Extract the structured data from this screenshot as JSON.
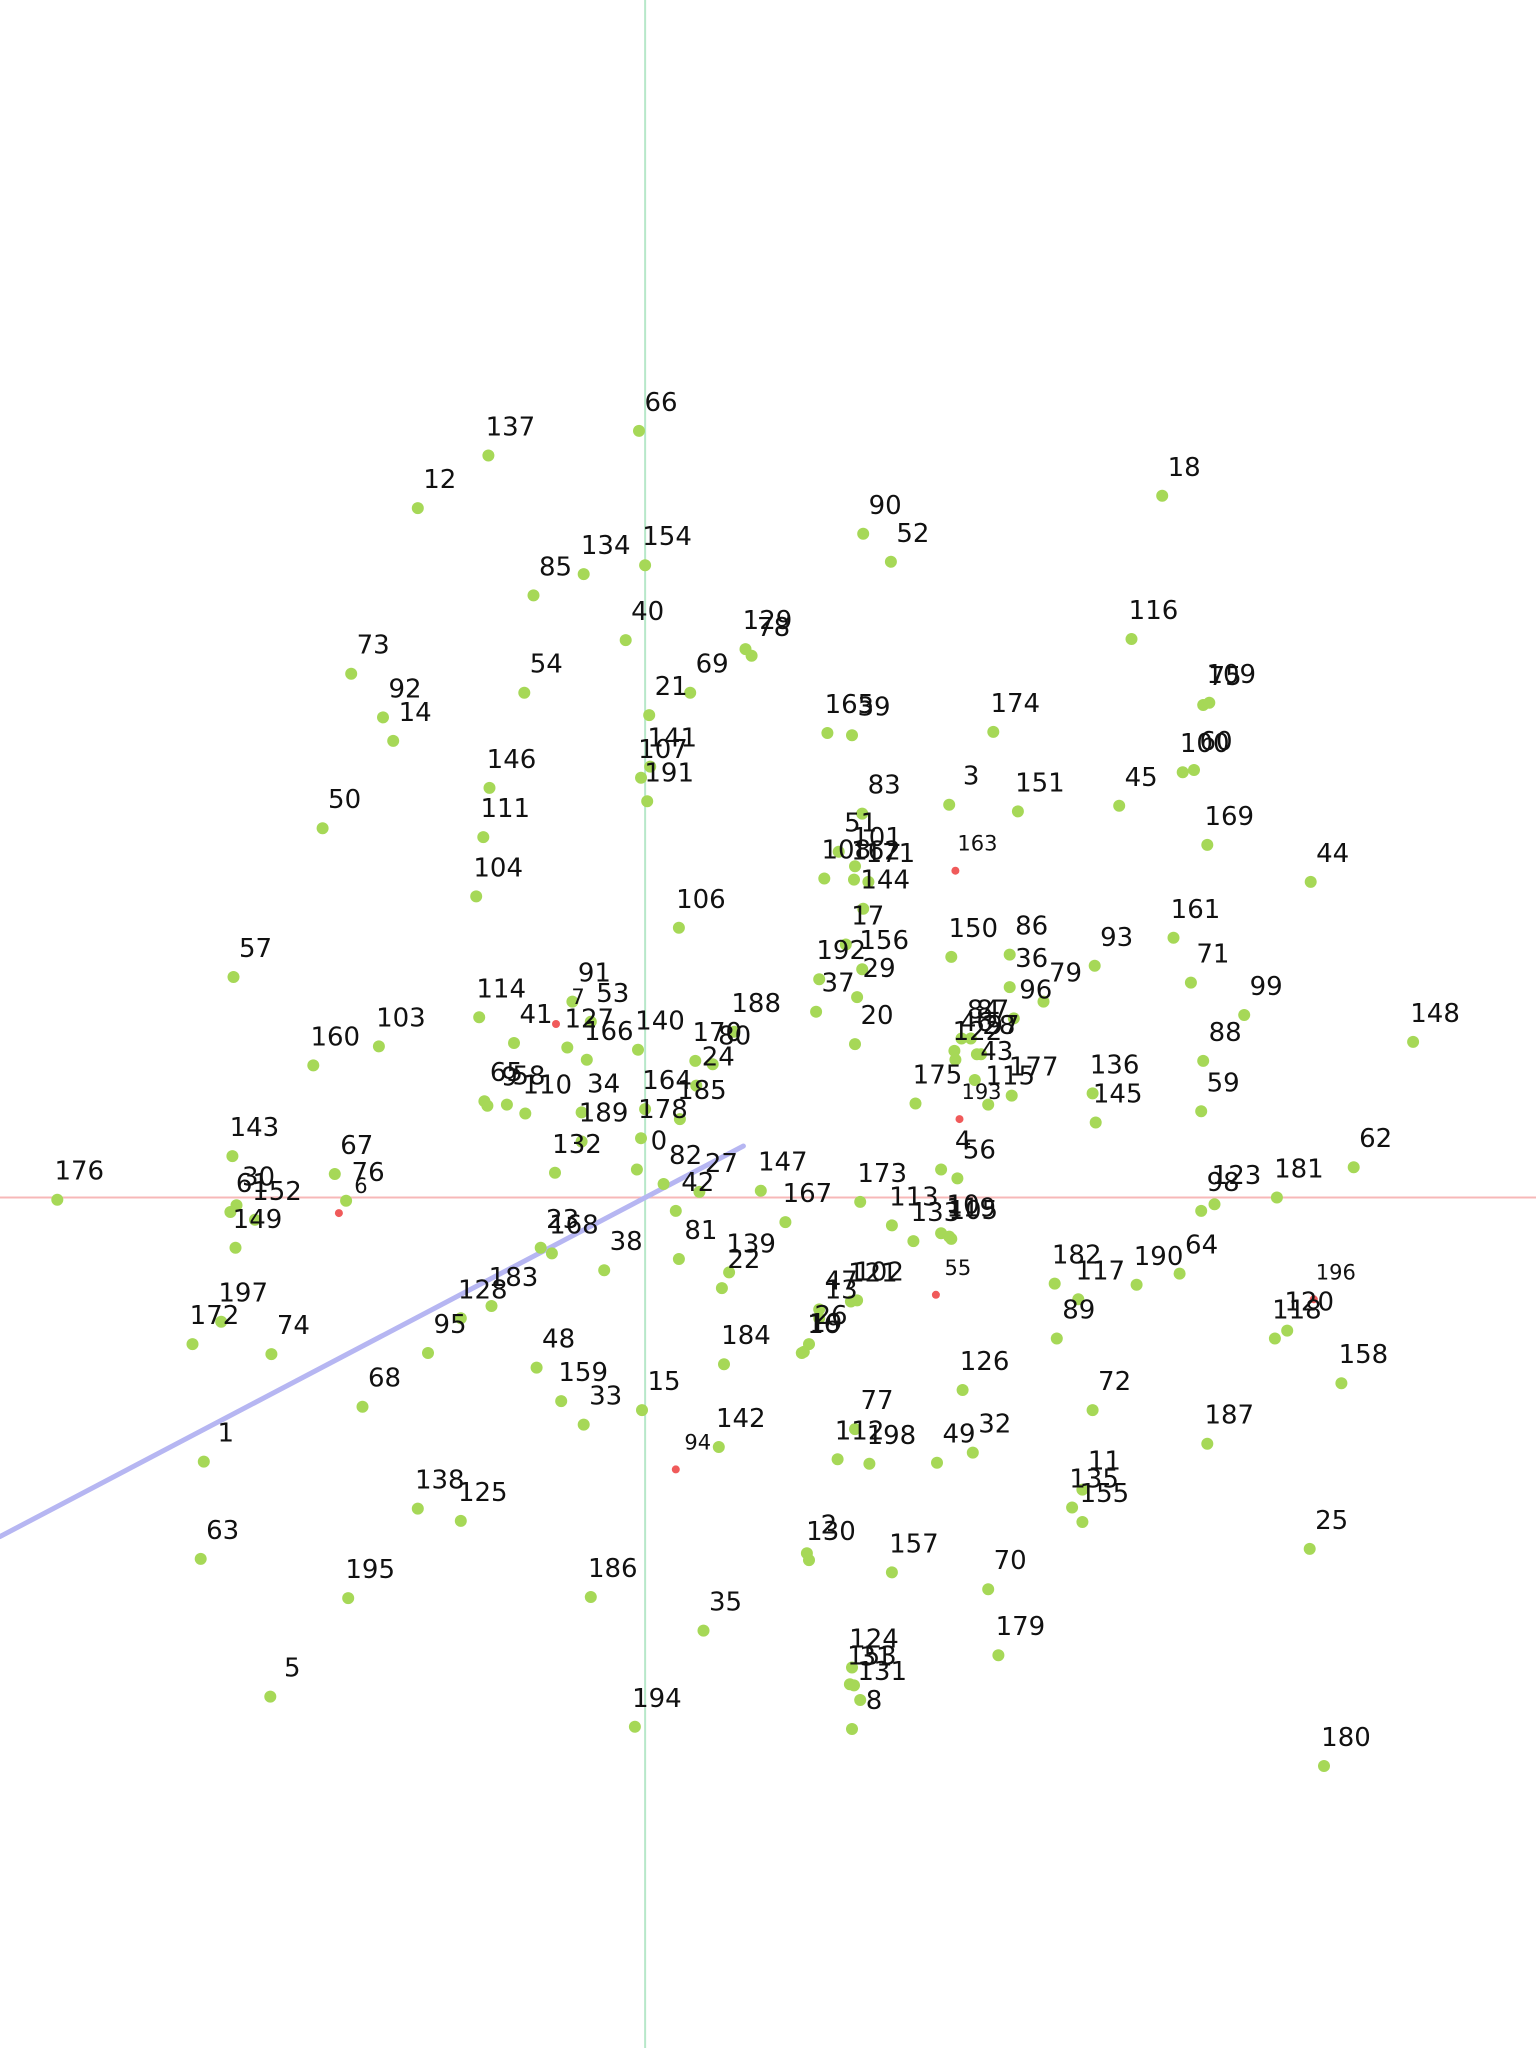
{
  "chart_data": {
    "type": "scatter",
    "title": "",
    "xlabel": "",
    "ylabel": "",
    "xlim": [
      -630,
      870
    ],
    "ylim": [
      -760,
      1070
    ],
    "grid": false,
    "axes": {
      "show_ticks": false,
      "origin_lines": true
    },
    "colors": {
      "point": "#a6d857",
      "highlight": "#f05a5a",
      "label": "#111111",
      "x_axis": "#f7b8b8",
      "y_axis": "#b7e8c9",
      "vector": "#b6b6f2"
    },
    "vector": {
      "from": [
        -630,
        -303
      ],
      "to": [
        96,
        46
      ]
    },
    "points": [
      {
        "id": "0",
        "x": -8,
        "y": 25
      },
      {
        "id": "1",
        "x": -431,
        "y": -236
      },
      {
        "id": "2",
        "x": 158,
        "y": -318
      },
      {
        "id": "3",
        "x": 297,
        "y": 351
      },
      {
        "id": "4",
        "x": 289,
        "y": 25
      },
      {
        "id": "5",
        "x": -366,
        "y": -446
      },
      {
        "id": "6",
        "x": -299,
        "y": -14,
        "highlight": true
      },
      {
        "id": "7",
        "x": -87,
        "y": 155,
        "highlight": true
      },
      {
        "id": "8",
        "x": 202,
        "y": -475
      },
      {
        "id": "9",
        "x": -154,
        "y": 82
      },
      {
        "id": "10",
        "x": 289,
        "y": -32
      },
      {
        "id": "11",
        "x": 427,
        "y": -261
      },
      {
        "id": "12",
        "x": -222,
        "y": 616
      },
      {
        "id": "13",
        "x": 170,
        "y": -108
      },
      {
        "id": "14",
        "x": -246,
        "y": 408
      },
      {
        "id": "15",
        "x": -3,
        "y": -190
      },
      {
        "id": "16",
        "x": 153,
        "y": -139
      },
      {
        "id": "17",
        "x": 196,
        "y": 226
      },
      {
        "id": "18",
        "x": 505,
        "y": 627
      },
      {
        "id": "19",
        "x": 155,
        "y": -138
      },
      {
        "id": "20",
        "x": 205,
        "y": 137
      },
      {
        "id": "21",
        "x": 4,
        "y": 431
      },
      {
        "id": "22",
        "x": 75,
        "y": -81
      },
      {
        "id": "23",
        "x": -102,
        "y": -45
      },
      {
        "id": "24",
        "x": 50,
        "y": 100
      },
      {
        "id": "25",
        "x": 649,
        "y": -314
      },
      {
        "id": "26",
        "x": 160,
        "y": -131
      },
      {
        "id": "27",
        "x": 53,
        "y": 5
      },
      {
        "id": "28",
        "x": 324,
        "y": 128
      },
      {
        "id": "29",
        "x": 207,
        "y": 179
      },
      {
        "id": "30",
        "x": -399,
        "y": -7
      },
      {
        "id": "31",
        "x": 204,
        "y": -436
      },
      {
        "id": "32",
        "x": 320,
        "y": -228
      },
      {
        "id": "33",
        "x": -60,
        "y": -203
      },
      {
        "id": "34",
        "x": -62,
        "y": 76
      },
      {
        "id": "35",
        "x": 57,
        "y": -387
      },
      {
        "id": "36",
        "x": 356,
        "y": 188
      },
      {
        "id": "37",
        "x": 167,
        "y": 166
      },
      {
        "id": "38",
        "x": -40,
        "y": -65
      },
      {
        "id": "39",
        "x": 202,
        "y": 413
      },
      {
        "id": "40",
        "x": -19,
        "y": 498
      },
      {
        "id": "41",
        "x": -128,
        "y": 138
      },
      {
        "id": "42",
        "x": 30,
        "y": -12
      },
      {
        "id": "43",
        "x": 322,
        "y": 105
      },
      {
        "id": "44",
        "x": 650,
        "y": 282
      },
      {
        "id": "45",
        "x": 463,
        "y": 350
      },
      {
        "id": "46",
        "x": 302,
        "y": 131
      },
      {
        "id": "47",
        "x": 170,
        "y": -100
      },
      {
        "id": "48",
        "x": -106,
        "y": -152
      },
      {
        "id": "49",
        "x": 285,
        "y": -237
      },
      {
        "id": "50",
        "x": -315,
        "y": 330
      },
      {
        "id": "51",
        "x": 189,
        "y": 309
      },
      {
        "id": "52",
        "x": 240,
        "y": 568
      },
      {
        "id": "53",
        "x": -53,
        "y": 157
      },
      {
        "id": "54",
        "x": -118,
        "y": 451
      },
      {
        "id": "55",
        "x": 284,
        "y": -87,
        "highlight": true
      },
      {
        "id": "56",
        "x": 305,
        "y": 17
      },
      {
        "id": "57",
        "x": -402,
        "y": 197
      },
      {
        "id": "58",
        "x": -135,
        "y": 83
      },
      {
        "id": "59",
        "x": 543,
        "y": 77
      },
      {
        "id": "60",
        "x": 536,
        "y": 382
      },
      {
        "id": "61",
        "x": -405,
        "y": -13
      },
      {
        "id": "62",
        "x": 692,
        "y": 27
      },
      {
        "id": "63",
        "x": -434,
        "y": -323
      },
      {
        "id": "64",
        "x": 522,
        "y": -68
      },
      {
        "id": "65",
        "x": -157,
        "y": 86
      },
      {
        "id": "66",
        "x": -6,
        "y": 685
      },
      {
        "id": "67",
        "x": -303,
        "y": 21
      },
      {
        "id": "68",
        "x": -276,
        "y": -187
      },
      {
        "id": "69",
        "x": 44,
        "y": 451
      },
      {
        "id": "70",
        "x": 335,
        "y": -350
      },
      {
        "id": "71",
        "x": 533,
        "y": 192
      },
      {
        "id": "72",
        "x": 437,
        "y": -190
      },
      {
        "id": "73",
        "x": -287,
        "y": 468
      },
      {
        "id": "74",
        "x": -365,
        "y": -140
      },
      {
        "id": "75",
        "x": 545,
        "y": 440
      },
      {
        "id": "76",
        "x": -292,
        "y": -3
      },
      {
        "id": "77",
        "x": 205,
        "y": -207
      },
      {
        "id": "78",
        "x": 104,
        "y": 484
      },
      {
        "id": "79",
        "x": 389,
        "y": 175
      },
      {
        "id": "80",
        "x": 66,
        "y": 119
      },
      {
        "id": "81",
        "x": 33,
        "y": -55
      },
      {
        "id": "82",
        "x": 18,
        "y": 12
      },
      {
        "id": "83",
        "x": 212,
        "y": 343
      },
      {
        "id": "84",
        "x": 309,
        "y": 142
      },
      {
        "id": "85",
        "x": -109,
        "y": 538
      },
      {
        "id": "86",
        "x": 356,
        "y": 217
      },
      {
        "id": "87",
        "x": 318,
        "y": 142
      },
      {
        "id": "88",
        "x": 545,
        "y": 122
      },
      {
        "id": "89",
        "x": 402,
        "y": -126
      },
      {
        "id": "90",
        "x": 213,
        "y": 593
      },
      {
        "id": "91",
        "x": -71,
        "y": 175
      },
      {
        "id": "92",
        "x": -256,
        "y": 429
      },
      {
        "id": "93",
        "x": 439,
        "y": 207
      },
      {
        "id": "94",
        "x": 30,
        "y": -243,
        "highlight": true
      },
      {
        "id": "95",
        "x": -212,
        "y": -139
      },
      {
        "id": "96",
        "x": 360,
        "y": 160
      },
      {
        "id": "97",
        "x": 328,
        "y": 128
      },
      {
        "id": "98",
        "x": 543,
        "y": -12
      },
      {
        "id": "99",
        "x": 585,
        "y": 163
      },
      {
        "id": "100",
        "x": 525,
        "y": 380
      },
      {
        "id": "101",
        "x": 205,
        "y": 296
      },
      {
        "id": "102",
        "x": 207,
        "y": -92
      },
      {
        "id": "103",
        "x": -260,
        "y": 135
      },
      {
        "id": "104",
        "x": -165,
        "y": 269
      },
      {
        "id": "105",
        "x": 299,
        "y": -37
      },
      {
        "id": "106",
        "x": 33,
        "y": 241
      },
      {
        "id": "107",
        "x": -4,
        "y": 375
      },
      {
        "id": "108",
        "x": 175,
        "y": 285
      },
      {
        "id": "109",
        "x": 551,
        "y": 442
      },
      {
        "id": "110",
        "x": -117,
        "y": 75
      },
      {
        "id": "111",
        "x": -158,
        "y": 322
      },
      {
        "id": "112",
        "x": 188,
        "y": -234
      },
      {
        "id": "113",
        "x": 241,
        "y": -25
      },
      {
        "id": "114",
        "x": -162,
        "y": 161
      },
      {
        "id": "115",
        "x": 335,
        "y": 83
      },
      {
        "id": "116",
        "x": 475,
        "y": 499
      },
      {
        "id": "117",
        "x": 423,
        "y": -91
      },
      {
        "id": "118",
        "x": 615,
        "y": -126
      },
      {
        "id": "119",
        "x": 297,
        "y": -35
      },
      {
        "id": "120",
        "x": 627,
        "y": -119
      },
      {
        "id": "121",
        "x": 201,
        "y": -93
      },
      {
        "id": "122",
        "x": 303,
        "y": 123
      },
      {
        "id": "123",
        "x": 556,
        "y": -6
      },
      {
        "id": "124",
        "x": 202,
        "y": -420
      },
      {
        "id": "125",
        "x": -180,
        "y": -289
      },
      {
        "id": "126",
        "x": 310,
        "y": -172
      },
      {
        "id": "127",
        "x": -76,
        "y": 134
      },
      {
        "id": "128",
        "x": -180,
        "y": -108
      },
      {
        "id": "129",
        "x": 98,
        "y": 490
      },
      {
        "id": "130",
        "x": 160,
        "y": -324
      },
      {
        "id": "131",
        "x": 210,
        "y": -449
      },
      {
        "id": "132",
        "x": -88,
        "y": 22
      },
      {
        "id": "133",
        "x": 262,
        "y": -39
      },
      {
        "id": "134",
        "x": -60,
        "y": 557
      },
      {
        "id": "135",
        "x": 417,
        "y": -277
      },
      {
        "id": "136",
        "x": 437,
        "y": 93
      },
      {
        "id": "137",
        "x": -153,
        "y": 663
      },
      {
        "id": "138",
        "x": -222,
        "y": -278
      },
      {
        "id": "139",
        "x": 82,
        "y": -67
      },
      {
        "id": "140",
        "x": -7,
        "y": 132
      },
      {
        "id": "141",
        "x": 5,
        "y": 385
      },
      {
        "id": "142",
        "x": 72,
        "y": -223
      },
      {
        "id": "143",
        "x": -403,
        "y": 37
      },
      {
        "id": "144",
        "x": 213,
        "y": 258
      },
      {
        "id": "145",
        "x": 440,
        "y": 67
      },
      {
        "id": "146",
        "x": -152,
        "y": 366
      },
      {
        "id": "147",
        "x": 113,
        "y": 6
      },
      {
        "id": "148",
        "x": 750,
        "y": 139
      },
      {
        "id": "149",
        "x": -400,
        "y": -45
      },
      {
        "id": "150",
        "x": 299,
        "y": 215
      },
      {
        "id": "151",
        "x": 364,
        "y": 345
      },
      {
        "id": "152",
        "x": -381,
        "y": -20
      },
      {
        "id": "153",
        "x": 200,
        "y": -435
      },
      {
        "id": "154",
        "x": 0,
        "y": 565
      },
      {
        "id": "155",
        "x": 427,
        "y": -290
      },
      {
        "id": "156",
        "x": 212,
        "y": 204
      },
      {
        "id": "157",
        "x": 241,
        "y": -335
      },
      {
        "id": "158",
        "x": 680,
        "y": -166
      },
      {
        "id": "159",
        "x": -82,
        "y": -182
      },
      {
        "id": "160",
        "x": -324,
        "y": 118
      },
      {
        "id": "161",
        "x": 516,
        "y": 232
      },
      {
        "id": "162",
        "x": 204,
        "y": 284
      },
      {
        "id": "163",
        "x": 303,
        "y": 292,
        "highlight": true
      },
      {
        "id": "164",
        "x": 0,
        "y": 79
      },
      {
        "id": "165",
        "x": 178,
        "y": 415
      },
      {
        "id": "166",
        "x": -57,
        "y": 123
      },
      {
        "id": "167",
        "x": 137,
        "y": -22
      },
      {
        "id": "168",
        "x": -91,
        "y": -50
      },
      {
        "id": "169",
        "x": 549,
        "y": 315
      },
      {
        "id": "170",
        "x": 49,
        "y": 122
      },
      {
        "id": "171",
        "x": 218,
        "y": 282
      },
      {
        "id": "172",
        "x": -442,
        "y": -131
      },
      {
        "id": "173",
        "x": 210,
        "y": -4
      },
      {
        "id": "174",
        "x": 340,
        "y": 416
      },
      {
        "id": "175",
        "x": 264,
        "y": 84
      },
      {
        "id": "176",
        "x": -574,
        "y": -2
      },
      {
        "id": "177",
        "x": 358,
        "y": 91
      },
      {
        "id": "178",
        "x": -4,
        "y": 53
      },
      {
        "id": "179",
        "x": 345,
        "y": -409
      },
      {
        "id": "180",
        "x": 663,
        "y": -508
      },
      {
        "id": "181",
        "x": 617,
        "y": 0
      },
      {
        "id": "182",
        "x": 400,
        "y": -77
      },
      {
        "id": "183",
        "x": -150,
        "y": -97
      },
      {
        "id": "184",
        "x": 77,
        "y": -149
      },
      {
        "id": "185",
        "x": 34,
        "y": 70
      },
      {
        "id": "186",
        "x": -53,
        "y": -357
      },
      {
        "id": "187",
        "x": 549,
        "y": -220
      },
      {
        "id": "188",
        "x": 87,
        "y": 148
      },
      {
        "id": "189",
        "x": -62,
        "y": 50
      },
      {
        "id": "190",
        "x": 480,
        "y": -78
      },
      {
        "id": "191",
        "x": 2,
        "y": 354
      },
      {
        "id": "192",
        "x": 170,
        "y": 195
      },
      {
        "id": "193",
        "x": 307,
        "y": 70,
        "highlight": true
      },
      {
        "id": "194",
        "x": -10,
        "y": -473
      },
      {
        "id": "195",
        "x": -290,
        "y": -358
      },
      {
        "id": "196",
        "x": 653,
        "y": -91,
        "highlight": true
      },
      {
        "id": "197",
        "x": -414,
        "y": -111
      },
      {
        "id": "198",
        "x": 219,
        "y": -238
      }
    ]
  }
}
